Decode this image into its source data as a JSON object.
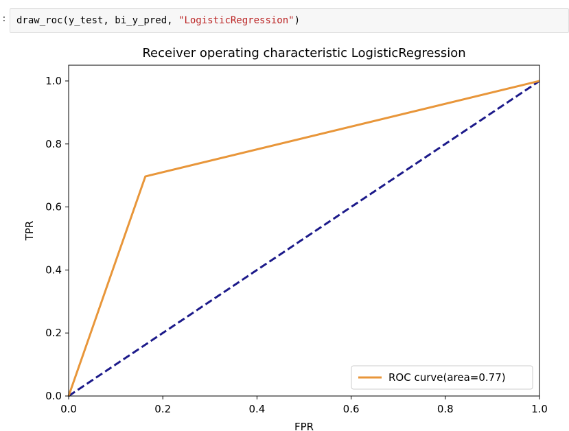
{
  "notebook": {
    "prompt": ":",
    "code": {
      "prefix": "draw_roc(y_test, bi_y_pred, ",
      "string_arg": "\"LogisticRegression\"",
      "suffix": ")"
    }
  },
  "colors": {
    "roc": "#e8963a",
    "diagonal": "#1c1a8a",
    "code_string": "#ba2121"
  },
  "chart_data": {
    "type": "line",
    "title": "Receiver operating characteristic LogisticRegression",
    "xlabel": "FPR",
    "ylabel": "TPR",
    "xlim": [
      0.0,
      1.0
    ],
    "ylim": [
      0.0,
      1.05
    ],
    "xticks": [
      "0.0",
      "0.2",
      "0.4",
      "0.6",
      "0.8",
      "1.0"
    ],
    "yticks": [
      "0.0",
      "0.2",
      "0.4",
      "0.6",
      "0.8",
      "1.0"
    ],
    "legend_position": "lower-right",
    "series": [
      {
        "name": "ROC curve(area=0.77)",
        "x": [
          0.0,
          0.163,
          1.0
        ],
        "y": [
          0.0,
          0.697,
          1.0
        ],
        "style": "solid",
        "color": "#e8963a"
      },
      {
        "x": [
          0.0,
          1.0
        ],
        "y": [
          0.0,
          1.0
        ],
        "style": "dashed",
        "color": "#1c1a8a"
      }
    ]
  }
}
